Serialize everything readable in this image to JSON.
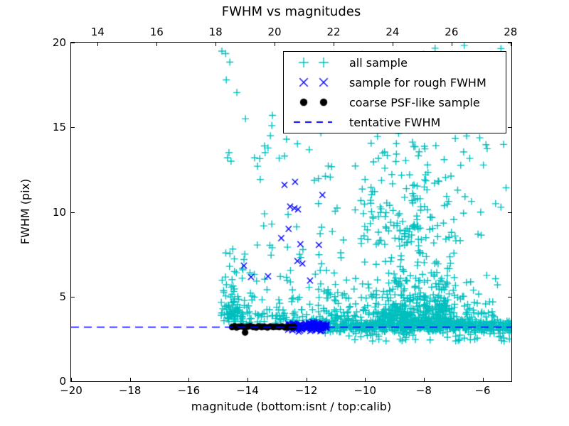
{
  "figure": {
    "background": "#ffffff",
    "frame_color": "#000000"
  },
  "chart_data": {
    "type": "scatter",
    "title": "FWHM vs magnitudes",
    "xlabel": "magnitude (bottom:isnt / top:calib)",
    "ylabel": "FWHM (pix)",
    "xlim": [
      -20,
      -5.02
    ],
    "ylim": [
      0,
      20
    ],
    "top_xlim": [
      13.1,
      28.03
    ],
    "grid": false,
    "legend_position": "upper center-right",
    "x_ticks": [
      {
        "v": -20,
        "label": "−20"
      },
      {
        "v": -18,
        "label": "−18"
      },
      {
        "v": -16,
        "label": "−16"
      },
      {
        "v": -14,
        "label": "−14"
      },
      {
        "v": -12,
        "label": "−12"
      },
      {
        "v": -10,
        "label": "−10"
      },
      {
        "v": -8,
        "label": "−8"
      },
      {
        "v": -6,
        "label": "−6"
      }
    ],
    "top_ticks": [
      {
        "v": 14,
        "label": "14"
      },
      {
        "v": 16,
        "label": "16"
      },
      {
        "v": 18,
        "label": "18"
      },
      {
        "v": 20,
        "label": "20"
      },
      {
        "v": 22,
        "label": "22"
      },
      {
        "v": 24,
        "label": "24"
      },
      {
        "v": 26,
        "label": "26"
      },
      {
        "v": 28,
        "label": "28"
      }
    ],
    "y_ticks": [
      {
        "v": 0,
        "label": "0"
      },
      {
        "v": 5,
        "label": "5"
      },
      {
        "v": 10,
        "label": "10"
      },
      {
        "v": 15,
        "label": "15"
      },
      {
        "v": 20,
        "label": "20"
      }
    ],
    "tentative_fwhm": 3.2,
    "series": [
      {
        "label": "all sample",
        "marker": "plus",
        "color": "#00bfbf",
        "points": [
          [
            -14.87,
            19.5
          ],
          [
            -14.74,
            19.35
          ],
          [
            -14.6,
            18.85
          ],
          [
            -14.72,
            17.8
          ],
          [
            -14.36,
            17.05
          ],
          [
            -14.07,
            15.5
          ],
          [
            -13.15,
            15.7
          ],
          [
            -13.17,
            15.1
          ],
          [
            -13.22,
            14.5
          ],
          [
            -13.42,
            13.9
          ],
          [
            -13.3,
            13.78
          ],
          [
            -13.4,
            13.5
          ],
          [
            -14.63,
            13.5
          ],
          [
            -14.68,
            13.2
          ],
          [
            -14.56,
            13.0
          ],
          [
            -13.76,
            13.2
          ],
          [
            -13.66,
            12.7
          ],
          [
            -12.74,
            13.3
          ],
          [
            -12.67,
            14.3
          ]
        ],
        "clusters": [
          {
            "n": 480,
            "x": {
              "d": "u",
              "a": -11.6,
              "b": -5.02
            },
            "y": {
              "d": "n",
              "m": 3.25,
              "s": 0.18
            }
          },
          {
            "n": 60,
            "x": {
              "d": "u",
              "a": -14.7,
              "b": -11.45
            },
            "y": {
              "d": "e",
              "y0": 3.35,
              "s": 0.45,
              "max": 4.6
            }
          },
          {
            "n": 620,
            "x": {
              "d": "n",
              "m": -8.2,
              "s": 1.15,
              "min": -10.4,
              "max": -5.05
            },
            "y": {
              "d": "e",
              "y0": 3.15,
              "s": 1.15,
              "max": 9.3
            }
          },
          {
            "n": 160,
            "x": {
              "d": "n",
              "m": -8.5,
              "s": 1.0,
              "min": -10.4,
              "max": -5.3
            },
            "y": {
              "d": "e",
              "y0": 8.0,
              "s": 3.5,
              "max": 19.8
            }
          },
          {
            "n": 60,
            "x": {
              "d": "u",
              "a": -10.4,
              "b": -5.05
            },
            "y": {
              "d": "u",
              "a": 8.0,
              "b": 19.9
            }
          },
          {
            "n": 70,
            "x": {
              "d": "n",
              "m": -14.55,
              "s": 0.18,
              "min": -14.95,
              "max": -14.1
            },
            "y": {
              "d": "e",
              "y0": 3.5,
              "s": 1.6,
              "max": 9.0
            }
          },
          {
            "n": 110,
            "x": {
              "d": "u",
              "a": -14.2,
              "b": -10.5
            },
            "y": {
              "d": "e",
              "y0": 3.55,
              "s": 2.0,
              "max": 9.0
            }
          },
          {
            "n": 25,
            "x": {
              "d": "u",
              "a": -13.6,
              "b": -10.5
            },
            "y": {
              "d": "u",
              "a": 9.0,
              "b": 16.0
            }
          },
          {
            "n": 30,
            "x": {
              "d": "u",
              "a": -11.4,
              "b": -10.2
            },
            "y": {
              "d": "e",
              "y0": 3.4,
              "s": 1.0,
              "max": 7.0
            }
          },
          {
            "n": 45,
            "x": {
              "d": "u",
              "a": -10.8,
              "b": -5.05
            },
            "y": {
              "d": "u",
              "a": 2.35,
              "b": 2.95
            }
          }
        ]
      },
      {
        "label": "sample for rough FWHM",
        "marker": "cross",
        "color": "#0000ff",
        "points": [
          [
            -12.74,
            11.6
          ],
          [
            -12.38,
            11.78
          ],
          [
            -11.45,
            11.0
          ],
          [
            -12.55,
            10.32
          ],
          [
            -12.4,
            10.22
          ],
          [
            -12.28,
            10.15
          ],
          [
            -12.6,
            9.0
          ],
          [
            -12.85,
            8.45
          ],
          [
            -12.2,
            8.1
          ],
          [
            -11.57,
            8.05
          ],
          [
            -12.3,
            7.1
          ],
          [
            -12.13,
            6.95
          ],
          [
            -11.87,
            5.95
          ],
          [
            -14.12,
            6.83
          ],
          [
            -13.88,
            6.16
          ],
          [
            -13.3,
            6.2
          ]
        ],
        "clusters": [
          {
            "n": 130,
            "x": {
              "d": "u",
              "a": -12.62,
              "b": -11.3
            },
            "y": {
              "d": "n",
              "m": 3.22,
              "s": 0.13
            }
          }
        ]
      },
      {
        "label": "coarse PSF-like sample",
        "marker": "dot",
        "color": "#000000",
        "points": [
          [
            -14.52,
            3.2
          ],
          [
            -14.44,
            3.25
          ],
          [
            -14.37,
            3.18
          ],
          [
            -14.3,
            3.22
          ],
          [
            -14.2,
            3.24
          ],
          [
            -14.1,
            3.18
          ],
          [
            -14.08,
            2.88
          ],
          [
            -14.0,
            3.22
          ],
          [
            -13.9,
            3.26
          ],
          [
            -13.8,
            3.2
          ],
          [
            -13.7,
            3.18
          ],
          [
            -13.62,
            3.24
          ],
          [
            -13.52,
            3.2
          ],
          [
            -13.42,
            3.22
          ],
          [
            -13.32,
            3.18
          ],
          [
            -13.22,
            3.24
          ],
          [
            -13.12,
            3.2
          ],
          [
            -13.02,
            3.22
          ],
          [
            -12.92,
            3.2
          ],
          [
            -12.82,
            3.24
          ],
          [
            -12.72,
            3.18
          ],
          [
            -12.62,
            3.22
          ],
          [
            -12.52,
            3.2
          ],
          [
            -12.42,
            3.22
          ]
        ],
        "clusters": []
      },
      {
        "label": "tentative FWHM",
        "marker": "dashed-line",
        "color": "#0000ff",
        "hline_y": 3.2
      }
    ]
  }
}
